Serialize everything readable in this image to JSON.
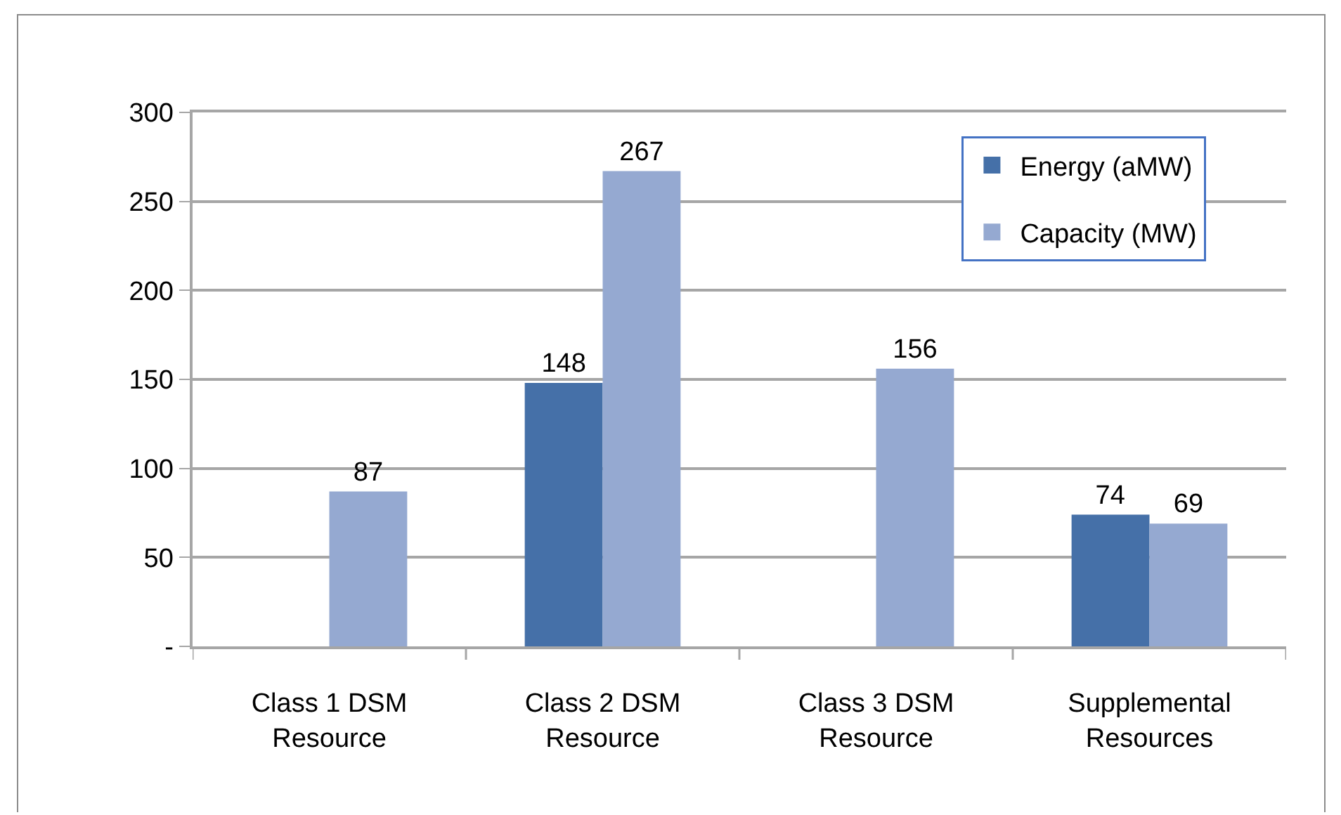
{
  "chart_data": {
    "type": "bar",
    "categories": [
      "Class 1 DSM Resource",
      "Class 2 DSM Resource",
      "Class 3 DSM Resource",
      "Supplemental Resources"
    ],
    "series": [
      {
        "name": "Energy (aMW)",
        "color": "#4570a8",
        "values": [
          null,
          148,
          null,
          74
        ]
      },
      {
        "name": "Capacity (MW)",
        "color": "#95a9d1",
        "values": [
          87,
          267,
          156,
          69
        ]
      }
    ],
    "ylim": [
      0,
      300
    ],
    "yticks": [
      {
        "value": 0,
        "label": "-"
      },
      50,
      100,
      150,
      200,
      250,
      300
    ],
    "grid": "y",
    "legend": "top right",
    "data_labels": true
  }
}
